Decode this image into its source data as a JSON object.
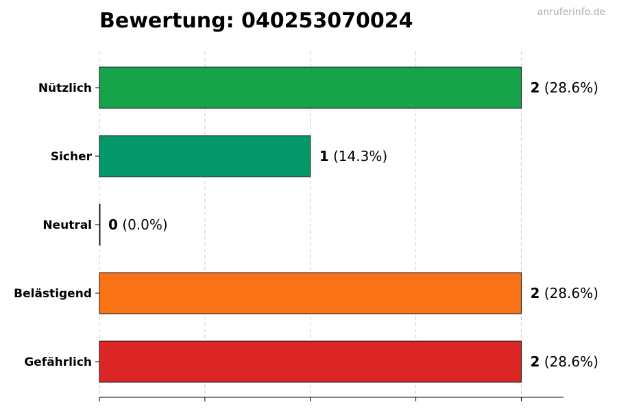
{
  "watermark": "anruferinfo.de",
  "chart_data": {
    "type": "bar",
    "orientation": "horizontal",
    "title": "Bewertung: 040253070024",
    "categories": [
      "Nützlich",
      "Sicher",
      "Neutral",
      "Belästigend",
      "Gefährlich"
    ],
    "values": [
      2,
      1,
      0,
      2,
      2
    ],
    "percent_labels": [
      "(28.6%)",
      "(14.3%)",
      "(0.0%)",
      "(28.6%)",
      "(28.6%)"
    ],
    "colors": [
      "#16a34a",
      "#059669",
      "#6b7280",
      "#f97316",
      "#dc2626"
    ],
    "xlim": [
      0,
      2.2
    ],
    "x_ticks": [
      0,
      0.5,
      1,
      1.5,
      2
    ],
    "grid": true,
    "xlabel": "",
    "ylabel": ""
  }
}
